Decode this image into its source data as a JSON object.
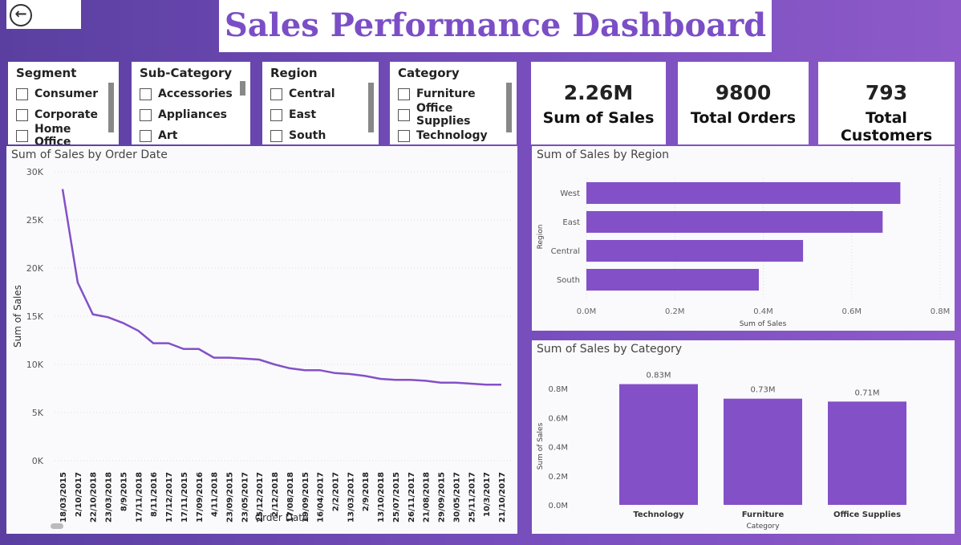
{
  "header": {
    "title": "Sales Performance Dashboard",
    "back_icon": "arrow-left-circle-icon"
  },
  "slicers": [
    {
      "title": "Segment",
      "options": [
        "Consumer",
        "Corporate",
        "Home Office"
      ]
    },
    {
      "title": "Sub-Category",
      "options": [
        "Accessories",
        "Appliances",
        "Art"
      ]
    },
    {
      "title": "Region",
      "options": [
        "Central",
        "East",
        "South"
      ]
    },
    {
      "title": "Category",
      "options": [
        "Furniture",
        "Office Supplies",
        "Technology"
      ]
    }
  ],
  "kpis": [
    {
      "value": "2.26M",
      "label": "Sum of Sales"
    },
    {
      "value": "9800",
      "label": "Total Orders"
    },
    {
      "value": "793",
      "label": "Total Customers"
    }
  ],
  "colors": {
    "accent": "#7b4ec6",
    "bar": "#8450c8"
  },
  "chart_data": [
    {
      "type": "line",
      "title": "Sum of Sales by Order Date",
      "xlabel": "Order Date",
      "ylabel": "Sum of Sales",
      "ylim": [
        0,
        30000
      ],
      "yticks": [
        "0K",
        "5K",
        "10K",
        "15K",
        "20K",
        "25K",
        "30K"
      ],
      "x": [
        "18/03/2015",
        "2/10/2017",
        "22/10/2018",
        "23/03/2018",
        "8/9/2015",
        "17/11/2018",
        "8/11/2016",
        "17/12/2017",
        "17/11/2015",
        "17/09/2016",
        "4/11/2018",
        "23/09/2015",
        "23/05/2017",
        "25/12/2017",
        "2/12/2018",
        "17/08/2018",
        "19/09/2015",
        "16/04/2017",
        "2/2/2017",
        "13/03/2017",
        "2/9/2018",
        "13/10/2018",
        "25/07/2015",
        "26/11/2017",
        "21/08/2018",
        "29/09/2015",
        "30/05/2017",
        "25/11/2017",
        "10/3/2017",
        "21/10/2017"
      ],
      "y": [
        28200,
        18500,
        15200,
        14900,
        14300,
        13500,
        12200,
        12200,
        11600,
        11600,
        10700,
        10700,
        10600,
        10500,
        10000,
        9600,
        9400,
        9400,
        9100,
        9000,
        8800,
        8500,
        8400,
        8400,
        8300,
        8100,
        8100,
        8000,
        7900,
        7900
      ]
    },
    {
      "type": "bar",
      "orientation": "horizontal",
      "title": "Sum of Sales by Region",
      "xlabel": "Sum of Sales",
      "ylabel": "Region",
      "categories": [
        "West",
        "East",
        "Central",
        "South"
      ],
      "values": [
        0.71,
        0.67,
        0.49,
        0.39
      ],
      "xlim": [
        0,
        0.8
      ],
      "xticks": [
        "0.0M",
        "0.2M",
        "0.4M",
        "0.6M",
        "0.8M"
      ]
    },
    {
      "type": "bar",
      "title": "Sum of Sales by Category",
      "xlabel": "Category",
      "ylabel": "Sum of Sales",
      "categories": [
        "Technology",
        "Furniture",
        "Office Supplies"
      ],
      "values": [
        0.83,
        0.73,
        0.71
      ],
      "labels": [
        "0.83M",
        "0.73M",
        "0.71M"
      ],
      "ylim": [
        0,
        0.8
      ],
      "yticks": [
        "0.0M",
        "0.2M",
        "0.4M",
        "0.6M",
        "0.8M"
      ]
    }
  ]
}
